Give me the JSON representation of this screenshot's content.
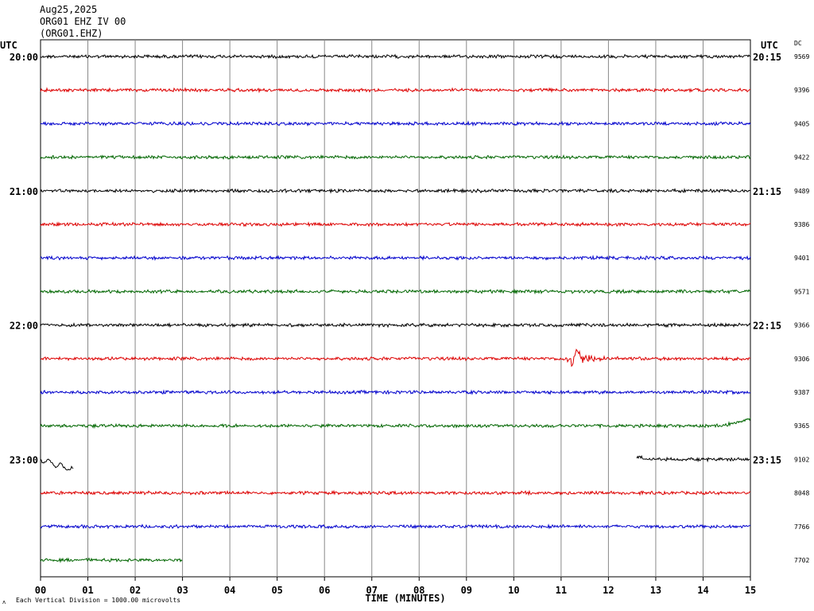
{
  "header": {
    "line1": "Aug25,2025",
    "line2": "ORG01 EHZ IV 00",
    "line3": "(ORG01.EHZ)"
  },
  "labels": {
    "utc_left": "UTC",
    "utc_right": "UTC",
    "dc": "DC",
    "xlabel": "TIME (MINUTES)",
    "footnote": "Each Vertical Division = 1000.00 microvolts"
  },
  "chart_data": {
    "type": "line",
    "title": "",
    "xlabel": "TIME (MINUTES)",
    "ylabel": "",
    "x_ticks": [
      "00",
      "01",
      "02",
      "03",
      "04",
      "05",
      "06",
      "07",
      "08",
      "09",
      "10",
      "11",
      "12",
      "13",
      "14",
      "15"
    ],
    "xlim": [
      0,
      15
    ],
    "grid": true,
    "colors": [
      "#000000",
      "#dd0000",
      "#0000cc",
      "#006600"
    ],
    "traces": [
      {
        "color": "#000000",
        "dc": "9569",
        "left_label": "20:00",
        "right_label": "20:15",
        "start": 0,
        "end": 15
      },
      {
        "color": "#dd0000",
        "dc": "9396",
        "left_label": "",
        "right_label": "",
        "start": 0,
        "end": 15
      },
      {
        "color": "#0000cc",
        "dc": "9405",
        "left_label": "",
        "right_label": "",
        "start": 0,
        "end": 15
      },
      {
        "color": "#006600",
        "dc": "9422",
        "left_label": "",
        "right_label": "",
        "start": 0,
        "end": 15
      },
      {
        "color": "#000000",
        "dc": "9489",
        "left_label": "21:00",
        "right_label": "21:15",
        "start": 0,
        "end": 15
      },
      {
        "color": "#dd0000",
        "dc": "9386",
        "left_label": "",
        "right_label": "",
        "start": 0,
        "end": 15
      },
      {
        "color": "#0000cc",
        "dc": "9401",
        "left_label": "",
        "right_label": "",
        "start": 0,
        "end": 15
      },
      {
        "color": "#006600",
        "dc": "9571",
        "left_label": "",
        "right_label": "",
        "start": 0,
        "end": 15
      },
      {
        "color": "#000000",
        "dc": "9366",
        "left_label": "22:00",
        "right_label": "22:15",
        "start": 0,
        "end": 15
      },
      {
        "color": "#dd0000",
        "dc": "9306",
        "left_label": "",
        "right_label": "",
        "start": 0,
        "end": 15,
        "event_at": 11.2
      },
      {
        "color": "#0000cc",
        "dc": "9387",
        "left_label": "",
        "right_label": "",
        "start": 0,
        "end": 15
      },
      {
        "color": "#006600",
        "dc": "9365",
        "left_label": "",
        "right_label": "",
        "start": 0,
        "end": 15,
        "rise_at": 14.4
      },
      {
        "color": "#000000",
        "dc": "9102",
        "left_label": "23:00",
        "right_label": "23:15",
        "segments": [
          [
            0,
            0.7
          ],
          [
            12.6,
            15
          ]
        ]
      },
      {
        "color": "#dd0000",
        "dc": "8048",
        "left_label": "",
        "right_label": "",
        "start": 0,
        "end": 15
      },
      {
        "color": "#0000cc",
        "dc": "7766",
        "left_label": "",
        "right_label": "",
        "start": 0,
        "end": 15
      },
      {
        "color": "#006600",
        "dc": "7702",
        "left_label": "",
        "right_label": "",
        "start": 0,
        "end": 3
      }
    ]
  }
}
